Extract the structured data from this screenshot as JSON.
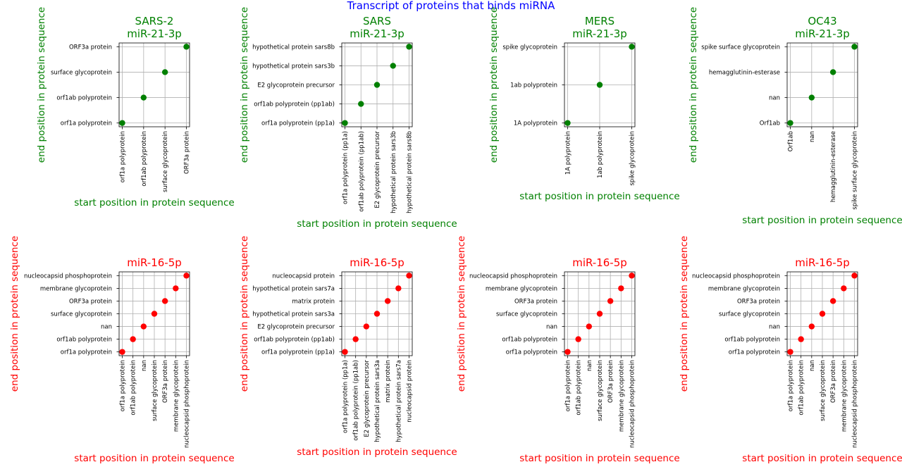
{
  "suptitle": "Transcript of proteins that binds miRNA",
  "chart_data": [
    {
      "type": "scatter",
      "title": [
        "SARS-2",
        "miR-21-3p"
      ],
      "xlabel": "start position in protein sequence",
      "ylabel": "end position in protein sequence",
      "categories": [
        "orf1a polyprotein",
        "orf1ab polyprotein",
        "surface glycoprotein",
        "ORF3a protein"
      ],
      "x": [
        "orf1a polyprotein",
        "orf1ab polyprotein",
        "surface glycoprotein",
        "ORF3a protein"
      ],
      "y": [
        "orf1a polyprotein",
        "orf1ab polyprotein",
        "surface glycoprotein",
        "ORF3a protein"
      ],
      "color": "#008000",
      "grid": true
    },
    {
      "type": "scatter",
      "title": [
        "SARS",
        "miR-21-3p"
      ],
      "xlabel": "start position in protein sequence",
      "ylabel": "end position in protein sequence",
      "categories": [
        "orf1a polyprotein (pp1a)",
        "orf1ab polyprotein (pp1ab)",
        "E2 glycoprotein precursor",
        "hypothetical protein sars3b",
        "hypothetical protein sars8b"
      ],
      "x": [
        "orf1a polyprotein (pp1a)",
        "orf1ab polyprotein (pp1ab)",
        "E2 glycoprotein precursor",
        "hypothetical protein sars3b",
        "hypothetical protein sars8b"
      ],
      "y": [
        "orf1a polyprotein (pp1a)",
        "orf1ab polyprotein (pp1ab)",
        "E2 glycoprotein precursor",
        "hypothetical protein sars3b",
        "hypothetical protein sars8b"
      ],
      "color": "#008000",
      "grid": true
    },
    {
      "type": "scatter",
      "title": [
        "MERS",
        "miR-21-3p"
      ],
      "xlabel": "start position in protein sequence",
      "ylabel": "end position in protein sequence",
      "categories": [
        "1A polyprotein",
        "1ab polyprotein",
        "spike glycoprotein"
      ],
      "x": [
        "1A polyprotein",
        "1ab polyprotein",
        "spike glycoprotein"
      ],
      "y": [
        "1A polyprotein",
        "1ab polyprotein",
        "spike glycoprotein"
      ],
      "color": "#008000",
      "grid": true
    },
    {
      "type": "scatter",
      "title": [
        "OC43",
        "miR-21-3p"
      ],
      "xlabel": "start position in protein sequence",
      "ylabel": "end position in protein sequence",
      "categories": [
        "Orf1ab",
        "nan",
        "hemagglutinin-esterase",
        "spike surface glycoprotein"
      ],
      "x": [
        "Orf1ab",
        "nan",
        "hemagglutinin-esterase",
        "spike surface glycoprotein"
      ],
      "y": [
        "Orf1ab",
        "nan",
        "hemagglutinin-esterase",
        "spike surface glycoprotein"
      ],
      "color": "#008000",
      "grid": true
    },
    {
      "type": "scatter",
      "title": [
        "miR-16-5p"
      ],
      "xlabel": "start position in protein sequence",
      "ylabel": "end position in protein sequence",
      "categories": [
        "orf1a polyprotein",
        "orf1ab polyprotein",
        "nan",
        "surface glycoprotein",
        "ORF3a protein",
        "membrane glycoprotein",
        "nucleocapsid phosphoprotein"
      ],
      "x": [
        "orf1a polyprotein",
        "orf1ab polyprotein",
        "nan",
        "surface glycoprotein",
        "ORF3a protein",
        "membrane glycoprotein",
        "nucleocapsid phosphoprotein"
      ],
      "y": [
        "orf1a polyprotein",
        "orf1ab polyprotein",
        "nan",
        "surface glycoprotein",
        "ORF3a protein",
        "membrane glycoprotein",
        "nucleocapsid phosphoprotein"
      ],
      "color": "#ff0000",
      "grid": true
    },
    {
      "type": "scatter",
      "title": [
        "miR-16-5p"
      ],
      "xlabel": "start position in protein sequence",
      "ylabel": "end position in protein sequence",
      "categories": [
        "orf1a polyprotein (pp1a)",
        "orf1ab polyprotein (pp1ab)",
        "E2 glycoprotein precursor",
        "hypothetical protein sars3a",
        "matrix protein",
        "hypothetical protein sars7a",
        "nucleocapsid protein"
      ],
      "x": [
        "orf1a polyprotein (pp1a)",
        "orf1ab polyprotein (pp1ab)",
        "E2 glycoprotein precursor",
        "hypothetical protein sars3a",
        "matrix protein",
        "hypothetical protein sars7a",
        "nucleocapsid protein"
      ],
      "y": [
        "orf1a polyprotein (pp1a)",
        "orf1ab polyprotein (pp1ab)",
        "E2 glycoprotein precursor",
        "hypothetical protein sars3a",
        "matrix protein",
        "hypothetical protein sars7a",
        "nucleocapsid protein"
      ],
      "color": "#ff0000",
      "grid": true
    },
    {
      "type": "scatter",
      "title": [
        "miR-16-5p"
      ],
      "xlabel": "start position in protein sequence",
      "ylabel": "end position in protein sequence",
      "categories": [
        "orf1a polyprotein",
        "orf1ab polyprotein",
        "nan",
        "surface glycoprotein",
        "ORF3a protein",
        "membrane glycoprotein",
        "nucleocapsid phosphoprotein"
      ],
      "x": [
        "orf1a polyprotein",
        "orf1ab polyprotein",
        "nan",
        "surface glycoprotein",
        "ORF3a protein",
        "membrane glycoprotein",
        "nucleocapsid phosphoprotein"
      ],
      "y": [
        "orf1a polyprotein",
        "orf1ab polyprotein",
        "nan",
        "surface glycoprotein",
        "ORF3a protein",
        "membrane glycoprotein",
        "nucleocapsid phosphoprotein"
      ],
      "color": "#ff0000",
      "grid": true
    },
    {
      "type": "scatter",
      "title": [
        "miR-16-5p"
      ],
      "xlabel": "start position in protein sequence",
      "ylabel": "end position in protein sequence",
      "categories": [
        "orf1a polyprotein",
        "orf1ab polyprotein",
        "nan",
        "surface glycoprotein",
        "ORF3a protein",
        "membrane glycoprotein",
        "nucleocapsid phosphoprotein"
      ],
      "x": [
        "orf1a polyprotein",
        "orf1ab polyprotein",
        "nan",
        "surface glycoprotein",
        "ORF3a protein",
        "membrane glycoprotein",
        "nucleocapsid phosphoprotein"
      ],
      "y": [
        "orf1a polyprotein",
        "orf1ab polyprotein",
        "nan",
        "surface glycoprotein",
        "ORF3a protein",
        "membrane glycoprotein",
        "nucleocapsid phosphoprotein"
      ],
      "color": "#ff0000",
      "grid": true
    }
  ],
  "colors": {
    "suptitle": "#0000ff",
    "mir21": "#008000",
    "mir16": "#ff0000",
    "grid": "#b0b0b0"
  }
}
